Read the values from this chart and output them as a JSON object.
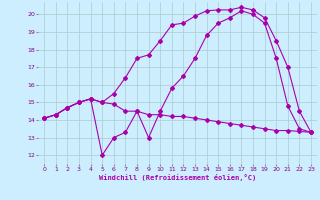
{
  "background_color": "#cceeff",
  "grid_color": "#aacccc",
  "line_color": "#aa00aa",
  "xlim": [
    -0.5,
    23.5
  ],
  "ylim": [
    11.5,
    20.7
  ],
  "xlabel": "Windchill (Refroidissement éolien,°C)",
  "xticks": [
    0,
    1,
    2,
    3,
    4,
    5,
    6,
    7,
    8,
    9,
    10,
    11,
    12,
    13,
    14,
    15,
    16,
    17,
    18,
    19,
    20,
    21,
    22,
    23
  ],
  "yticks": [
    12,
    13,
    14,
    15,
    16,
    17,
    18,
    19,
    20
  ],
  "curve1_x": [
    0,
    1,
    2,
    3,
    4,
    5,
    6,
    7,
    8,
    9,
    10,
    11,
    12,
    13,
    14,
    15,
    16,
    17,
    18,
    19,
    20,
    21,
    22,
    23
  ],
  "curve1_y": [
    14.1,
    14.3,
    14.7,
    15.0,
    15.2,
    15.0,
    14.9,
    14.5,
    14.5,
    14.3,
    14.3,
    14.2,
    14.2,
    14.1,
    14.0,
    13.9,
    13.8,
    13.7,
    13.6,
    13.5,
    13.4,
    13.4,
    13.35,
    13.3
  ],
  "curve2_x": [
    0,
    1,
    2,
    3,
    4,
    5,
    6,
    7,
    8,
    9,
    10,
    11,
    12,
    13,
    14,
    15,
    16,
    17,
    18,
    19,
    20,
    21,
    22,
    23
  ],
  "curve2_y": [
    14.1,
    14.3,
    14.7,
    15.0,
    15.2,
    15.0,
    15.5,
    16.4,
    17.5,
    17.7,
    18.5,
    19.4,
    19.5,
    19.9,
    20.2,
    20.25,
    20.25,
    20.4,
    20.25,
    19.8,
    18.5,
    17.0,
    14.5,
    13.3
  ],
  "curve3_x": [
    0,
    1,
    2,
    3,
    4,
    5,
    6,
    7,
    8,
    9,
    10,
    11,
    12,
    13,
    14,
    15,
    16,
    17,
    18,
    19,
    20,
    21,
    22,
    23
  ],
  "curve3_y": [
    14.1,
    14.3,
    14.7,
    15.0,
    15.2,
    12.0,
    13.0,
    13.3,
    14.5,
    13.0,
    14.5,
    15.8,
    16.5,
    17.5,
    18.8,
    19.5,
    19.8,
    20.2,
    20.0,
    19.5,
    17.5,
    14.8,
    13.5,
    13.3
  ],
  "marker": "D",
  "markersize": 2.0,
  "linewidth": 0.8
}
